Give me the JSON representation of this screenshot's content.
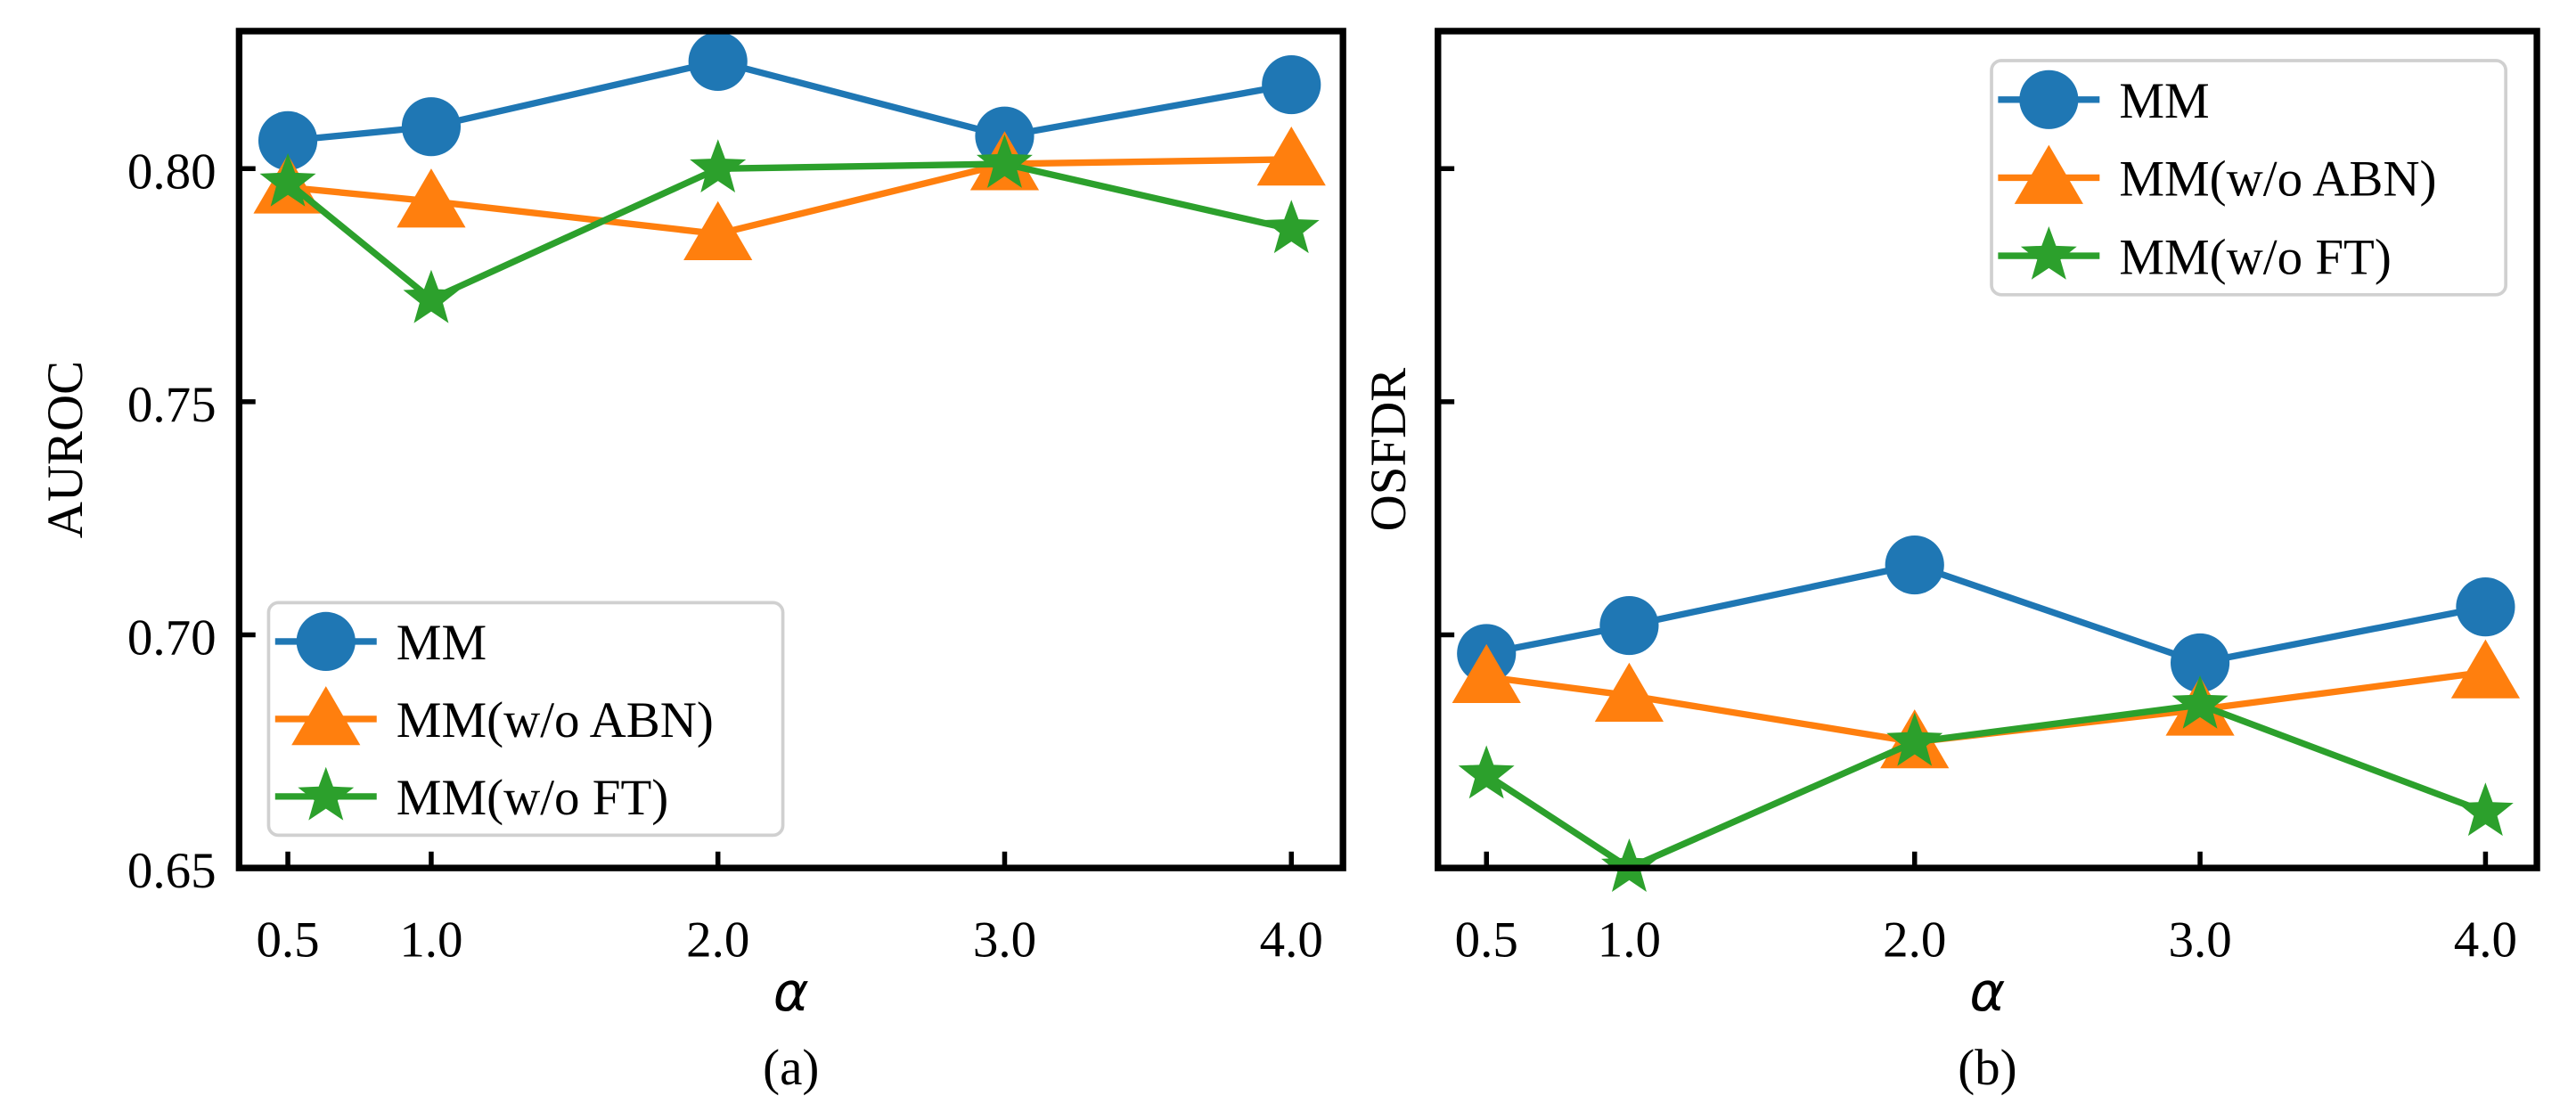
{
  "chart_data": [
    {
      "type": "line",
      "panel_label": "(a)",
      "xlabel": "α",
      "ylabel": "AUROC",
      "x": [
        0.5,
        1.0,
        2.0,
        3.0,
        4.0
      ],
      "x_tick_labels": [
        "0.5",
        "1.0",
        "2.0",
        "3.0",
        "4.0"
      ],
      "xlim": [
        0.33,
        4.18
      ],
      "ylim": [
        0.65,
        0.8295
      ],
      "y_ticks": [
        0.65,
        0.7,
        0.75,
        0.8
      ],
      "y_tick_labels": [
        "0.65",
        "0.70",
        "0.75",
        "0.80"
      ],
      "legend_position": "lower-left",
      "series": [
        {
          "name": "MM",
          "color": "#1f77b4",
          "marker": "circle",
          "values": [
            0.806,
            0.809,
            0.823,
            0.807,
            0.818
          ]
        },
        {
          "name": "MM(w/o ABN)",
          "color": "#ff7f0e",
          "marker": "triangle",
          "values": [
            0.796,
            0.793,
            0.786,
            0.801,
            0.802
          ]
        },
        {
          "name": "MM(w/o FT)",
          "color": "#2ca02c",
          "marker": "star",
          "values": [
            0.797,
            0.772,
            0.8,
            0.801,
            0.787
          ]
        }
      ]
    },
    {
      "type": "line",
      "panel_label": "(b)",
      "xlabel": "α",
      "ylabel": "OSFDR",
      "x": [
        0.5,
        1.0,
        2.0,
        3.0,
        4.0
      ],
      "x_tick_labels": [
        "0.5",
        "1.0",
        "2.0",
        "3.0",
        "4.0"
      ],
      "xlim": [
        0.33,
        4.18
      ],
      "ylim": [
        0.65,
        0.8295
      ],
      "y_ticks": [
        0.65,
        0.7,
        0.75,
        0.8
      ],
      "y_tick_labels": [],
      "legend_position": "upper-right",
      "series": [
        {
          "name": "MM",
          "color": "#1f77b4",
          "marker": "circle",
          "values": [
            0.696,
            0.702,
            0.715,
            0.694,
            0.706
          ]
        },
        {
          "name": "MM(w/o ABN)",
          "color": "#ff7f0e",
          "marker": "triangle",
          "values": [
            0.691,
            0.687,
            0.677,
            0.684,
            0.692
          ]
        },
        {
          "name": "MM(w/o FT)",
          "color": "#2ca02c",
          "marker": "star",
          "values": [
            0.67,
            0.65,
            0.677,
            0.685,
            0.662
          ]
        }
      ]
    }
  ]
}
